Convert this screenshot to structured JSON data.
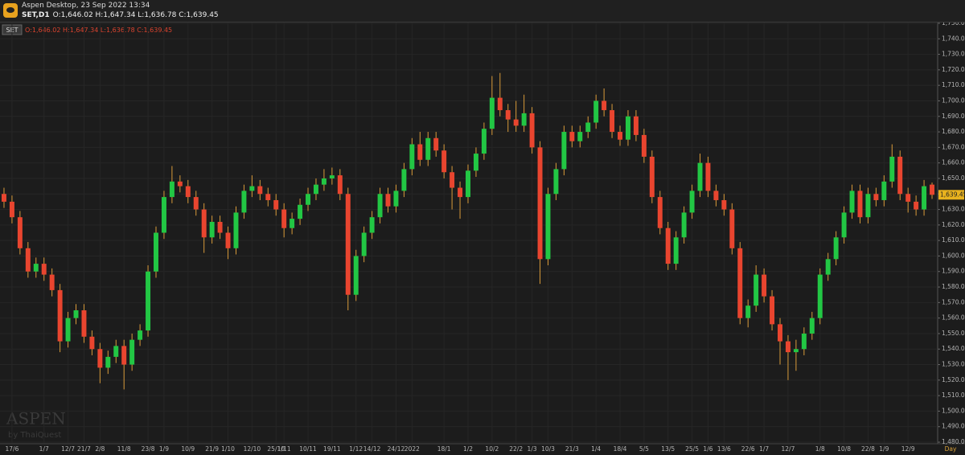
{
  "window": {
    "title": "Aspen Desktop, 23 Sep 2022 13:34",
    "symbol": "SET,D1",
    "ohlc": "O:1,646.02 H:1,647.34 L:1,636.78 C:1,639.45"
  },
  "chart_data": {
    "type": "candlestick",
    "badge": "SET",
    "ohlc_label": "O:1,646.02 H:1,647.34 L:1,636.78 C:1,639.45",
    "x_label": "Day",
    "watermark": {
      "title": "ASPEN",
      "subtitle": "by ThaiQuest"
    },
    "up_color": "#22c744",
    "down_color": "#e9452f",
    "wick_color": "#d99b3a",
    "grid": true,
    "categories": [
      null,
      "17/6",
      null,
      null,
      null,
      "1/7",
      null,
      null,
      "12/7",
      null,
      "21/7",
      null,
      "2/8",
      null,
      null,
      "11/8",
      null,
      null,
      "23/8",
      null,
      "1/9",
      null,
      null,
      "10/9",
      null,
      null,
      "21/9",
      null,
      "1/10",
      null,
      null,
      "12/10",
      null,
      null,
      "25/10",
      "1/11",
      null,
      null,
      "10/11",
      null,
      null,
      "19/11",
      null,
      null,
      "1/12",
      null,
      "14/12",
      null,
      null,
      "24/12",
      null,
      "2022",
      null,
      null,
      null,
      "18/1",
      null,
      null,
      "1/2",
      null,
      null,
      "10/2",
      null,
      null,
      "22/2",
      null,
      "1/3",
      null,
      "10/3",
      null,
      null,
      "21/3",
      null,
      null,
      "1/4",
      null,
      null,
      "18/4",
      null,
      null,
      "5/5",
      null,
      null,
      "13/5",
      null,
      null,
      "25/5",
      null,
      "1/6",
      null,
      "13/6",
      null,
      null,
      "22/6",
      null,
      "1/7",
      null,
      null,
      "12/7",
      null,
      null,
      null,
      "1/8",
      null,
      null,
      "10/8",
      null,
      null,
      "22/8",
      null,
      "1/9",
      null,
      null,
      "12/9",
      null,
      null,
      null
    ],
    "open": [
      1640,
      1635,
      1625,
      1605,
      1590,
      1595,
      1588,
      1578,
      1545,
      1560,
      1565,
      1548,
      1540,
      1528,
      1535,
      1542,
      1530,
      1546,
      1552,
      1590,
      1615,
      1638,
      1648,
      1645,
      1638,
      1630,
      1612,
      1622,
      1615,
      1605,
      1628,
      1642,
      1645,
      1640,
      1636,
      1630,
      1618,
      1624,
      1633,
      1640,
      1646,
      1650,
      1652,
      1640,
      1575,
      1600,
      1615,
      1625,
      1640,
      1632,
      1642,
      1656,
      1672,
      1662,
      1676,
      1668,
      1654,
      1644,
      1638,
      1655,
      1666,
      1682,
      1702,
      1694,
      1688,
      1684,
      1692,
      1670,
      1598,
      1640,
      1656,
      1680,
      1674,
      1680,
      1686,
      1700,
      1694,
      1680,
      1675,
      1690,
      1678,
      1664,
      1638,
      1618,
      1595,
      1612,
      1628,
      1642,
      1660,
      1642,
      1636,
      1630,
      1605,
      1560,
      1568,
      1588,
      1574,
      1556,
      1545,
      1538,
      1540,
      1550,
      1560,
      1588,
      1598,
      1612,
      1628,
      1642,
      1625,
      1640,
      1636,
      1648,
      1664,
      1640,
      1635,
      1630,
      1646.02
    ],
    "high": [
      1644,
      1639,
      1629,
      1609,
      1599,
      1599,
      1592,
      1582,
      1564,
      1569,
      1569,
      1552,
      1544,
      1539,
      1546,
      1546,
      1550,
      1556,
      1594,
      1619,
      1642,
      1658,
      1652,
      1649,
      1642,
      1634,
      1626,
      1626,
      1619,
      1632,
      1646,
      1652,
      1649,
      1644,
      1640,
      1634,
      1628,
      1637,
      1644,
      1650,
      1656,
      1657,
      1656,
      1644,
      1604,
      1619,
      1629,
      1644,
      1644,
      1646,
      1660,
      1676,
      1680,
      1680,
      1680,
      1672,
      1658,
      1648,
      1659,
      1670,
      1686,
      1716,
      1718,
      1698,
      1700,
      1704,
      1696,
      1674,
      1644,
      1660,
      1684,
      1684,
      1684,
      1690,
      1704,
      1708,
      1698,
      1684,
      1694,
      1694,
      1682,
      1668,
      1642,
      1622,
      1616,
      1632,
      1646,
      1666,
      1664,
      1646,
      1640,
      1634,
      1609,
      1572,
      1594,
      1592,
      1578,
      1560,
      1549,
      1546,
      1554,
      1564,
      1592,
      1602,
      1616,
      1632,
      1646,
      1646,
      1644,
      1644,
      1652,
      1672,
      1668,
      1644,
      1639,
      1649,
      1647.34
    ],
    "low": [
      1631,
      1621,
      1601,
      1586,
      1586,
      1584,
      1574,
      1538,
      1541,
      1556,
      1544,
      1536,
      1518,
      1524,
      1531,
      1514,
      1526,
      1542,
      1548,
      1586,
      1611,
      1634,
      1641,
      1634,
      1626,
      1602,
      1608,
      1611,
      1598,
      1601,
      1624,
      1638,
      1636,
      1632,
      1626,
      1612,
      1614,
      1620,
      1629,
      1636,
      1642,
      1646,
      1636,
      1565,
      1571,
      1596,
      1611,
      1621,
      1628,
      1628,
      1638,
      1652,
      1658,
      1658,
      1664,
      1650,
      1630,
      1624,
      1634,
      1651,
      1662,
      1678,
      1690,
      1680,
      1680,
      1680,
      1666,
      1582,
      1594,
      1636,
      1652,
      1670,
      1670,
      1676,
      1682,
      1690,
      1676,
      1671,
      1671,
      1674,
      1660,
      1634,
      1614,
      1591,
      1591,
      1608,
      1624,
      1638,
      1638,
      1632,
      1626,
      1601,
      1556,
      1554,
      1564,
      1570,
      1552,
      1530,
      1520,
      1526,
      1536,
      1546,
      1556,
      1584,
      1594,
      1608,
      1624,
      1621,
      1621,
      1632,
      1632,
      1644,
      1636,
      1628,
      1626,
      1626,
      1636.78
    ],
    "close": [
      1635,
      1625,
      1605,
      1590,
      1595,
      1588,
      1578,
      1545,
      1560,
      1565,
      1548,
      1540,
      1528,
      1535,
      1542,
      1530,
      1546,
      1552,
      1590,
      1615,
      1638,
      1648,
      1645,
      1638,
      1630,
      1612,
      1622,
      1615,
      1605,
      1628,
      1642,
      1645,
      1640,
      1636,
      1630,
      1618,
      1624,
      1633,
      1640,
      1646,
      1650,
      1652,
      1640,
      1575,
      1600,
      1615,
      1625,
      1640,
      1632,
      1642,
      1656,
      1672,
      1662,
      1676,
      1668,
      1654,
      1644,
      1638,
      1655,
      1666,
      1682,
      1702,
      1694,
      1688,
      1684,
      1692,
      1670,
      1598,
      1640,
      1656,
      1680,
      1674,
      1680,
      1686,
      1700,
      1694,
      1680,
      1675,
      1690,
      1678,
      1664,
      1638,
      1618,
      1595,
      1612,
      1628,
      1642,
      1660,
      1642,
      1636,
      1630,
      1605,
      1560,
      1568,
      1588,
      1574,
      1556,
      1545,
      1538,
      1540,
      1550,
      1560,
      1588,
      1598,
      1612,
      1628,
      1642,
      1625,
      1640,
      1636,
      1648,
      1664,
      1640,
      1635,
      1630,
      1645,
      1639.45
    ],
    "last_price": {
      "value": 1639.45,
      "label": "1,639.45"
    },
    "ylim": [
      1479.5,
      1750.5
    ],
    "yticks": [
      {
        "value": 1480,
        "label": "1,480.00"
      },
      {
        "value": 1490,
        "label": "1,490.00"
      },
      {
        "value": 1500,
        "label": "1,500.00"
      },
      {
        "value": 1510,
        "label": "1,510.00"
      },
      {
        "value": 1520,
        "label": "1,520.00"
      },
      {
        "value": 1530,
        "label": "1,530.00"
      },
      {
        "value": 1540,
        "label": "1,540.00"
      },
      {
        "value": 1550,
        "label": "1,550.00"
      },
      {
        "value": 1560,
        "label": "1,560.00"
      },
      {
        "value": 1570,
        "label": "1,570.00"
      },
      {
        "value": 1580,
        "label": "1,580.00"
      },
      {
        "value": 1590,
        "label": "1,590.00"
      },
      {
        "value": 1600,
        "label": "1,600.00"
      },
      {
        "value": 1610,
        "label": "1,610.00"
      },
      {
        "value": 1620,
        "label": "1,620.00"
      },
      {
        "value": 1630,
        "label": "1,630.00"
      },
      {
        "value": 1640,
        "label": "1,640.00"
      },
      {
        "value": 1650,
        "label": "1,650.00"
      },
      {
        "value": 1660,
        "label": "1,660.00"
      },
      {
        "value": 1670,
        "label": "1,670.00"
      },
      {
        "value": 1680,
        "label": "1,680.00"
      },
      {
        "value": 1690,
        "label": "1,690.00"
      },
      {
        "value": 1700,
        "label": "1,700.00"
      },
      {
        "value": 1710,
        "label": "1,710.00"
      },
      {
        "value": 1720,
        "label": "1,720.00"
      },
      {
        "value": 1730,
        "label": "1,730.00"
      },
      {
        "value": 1740,
        "label": "1,740.00"
      },
      {
        "value": 1750,
        "label": "1,750.00"
      }
    ]
  }
}
